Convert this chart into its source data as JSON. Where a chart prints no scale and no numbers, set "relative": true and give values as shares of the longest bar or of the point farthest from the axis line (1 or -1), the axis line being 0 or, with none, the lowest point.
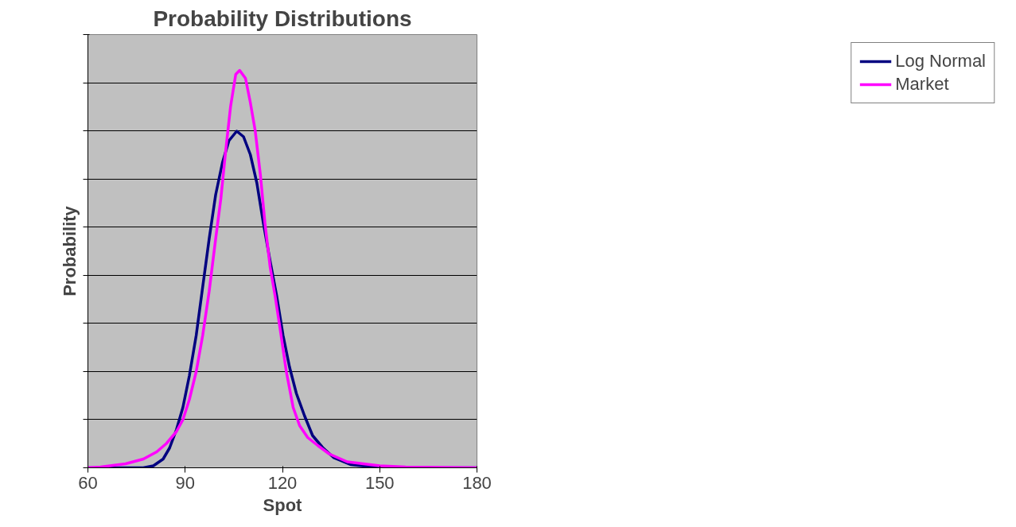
{
  "chart_data": {
    "type": "line",
    "title": "Probability Distributions",
    "xlabel": "Spot",
    "ylabel": "Probability",
    "relative": true,
    "xlim": [
      60,
      180
    ],
    "xticks": [
      60,
      90,
      120,
      150,
      180
    ],
    "grid": "y",
    "legend": "right",
    "marker": "none",
    "line_style": "solid",
    "series": [
      {
        "name": "Log Normal",
        "color": "#000080",
        "x": [
          60,
          77.1,
          80.2,
          83.2,
          85.2,
          87.3,
          89.3,
          91.3,
          93.4,
          95.4,
          97.4,
          99.4,
          101.5,
          103.5,
          105.9,
          108.0,
          110.1,
          112.1,
          114.1,
          116.2,
          118.2,
          120.2,
          122.2,
          124.3,
          126.8,
          129.3,
          132.4,
          135.9,
          141,
          150,
          180
        ],
        "values": [
          0,
          0,
          0.005,
          0.022,
          0.05,
          0.096,
          0.152,
          0.232,
          0.333,
          0.455,
          0.576,
          0.687,
          0.768,
          0.823,
          0.847,
          0.833,
          0.788,
          0.717,
          0.616,
          0.52,
          0.434,
          0.333,
          0.253,
          0.187,
          0.131,
          0.081,
          0.051,
          0.025,
          0.008,
          0,
          0
        ]
      },
      {
        "name": "Market",
        "color": "#ff00ff",
        "x": [
          60,
          63.9,
          71.6,
          77.1,
          81.2,
          84.2,
          87.3,
          89.3,
          91.3,
          93.4,
          95.4,
          97.4,
          99.4,
          101.0,
          102.5,
          104.0,
          105.6,
          106.8,
          108.6,
          110.1,
          111.6,
          113.2,
          114.6,
          116.2,
          117.7,
          119.2,
          121.2,
          123.3,
          125.3,
          127.8,
          130.9,
          134.4,
          140,
          150,
          158,
          180
        ],
        "values": [
          0,
          0.002,
          0.01,
          0.022,
          0.04,
          0.061,
          0.091,
          0.121,
          0.172,
          0.242,
          0.333,
          0.444,
          0.576,
          0.677,
          0.798,
          0.909,
          0.99,
          1.0,
          0.98,
          0.919,
          0.848,
          0.737,
          0.616,
          0.505,
          0.434,
          0.354,
          0.242,
          0.152,
          0.106,
          0.076,
          0.056,
          0.035,
          0.015,
          0.005,
          0.002,
          0
        ]
      }
    ]
  }
}
